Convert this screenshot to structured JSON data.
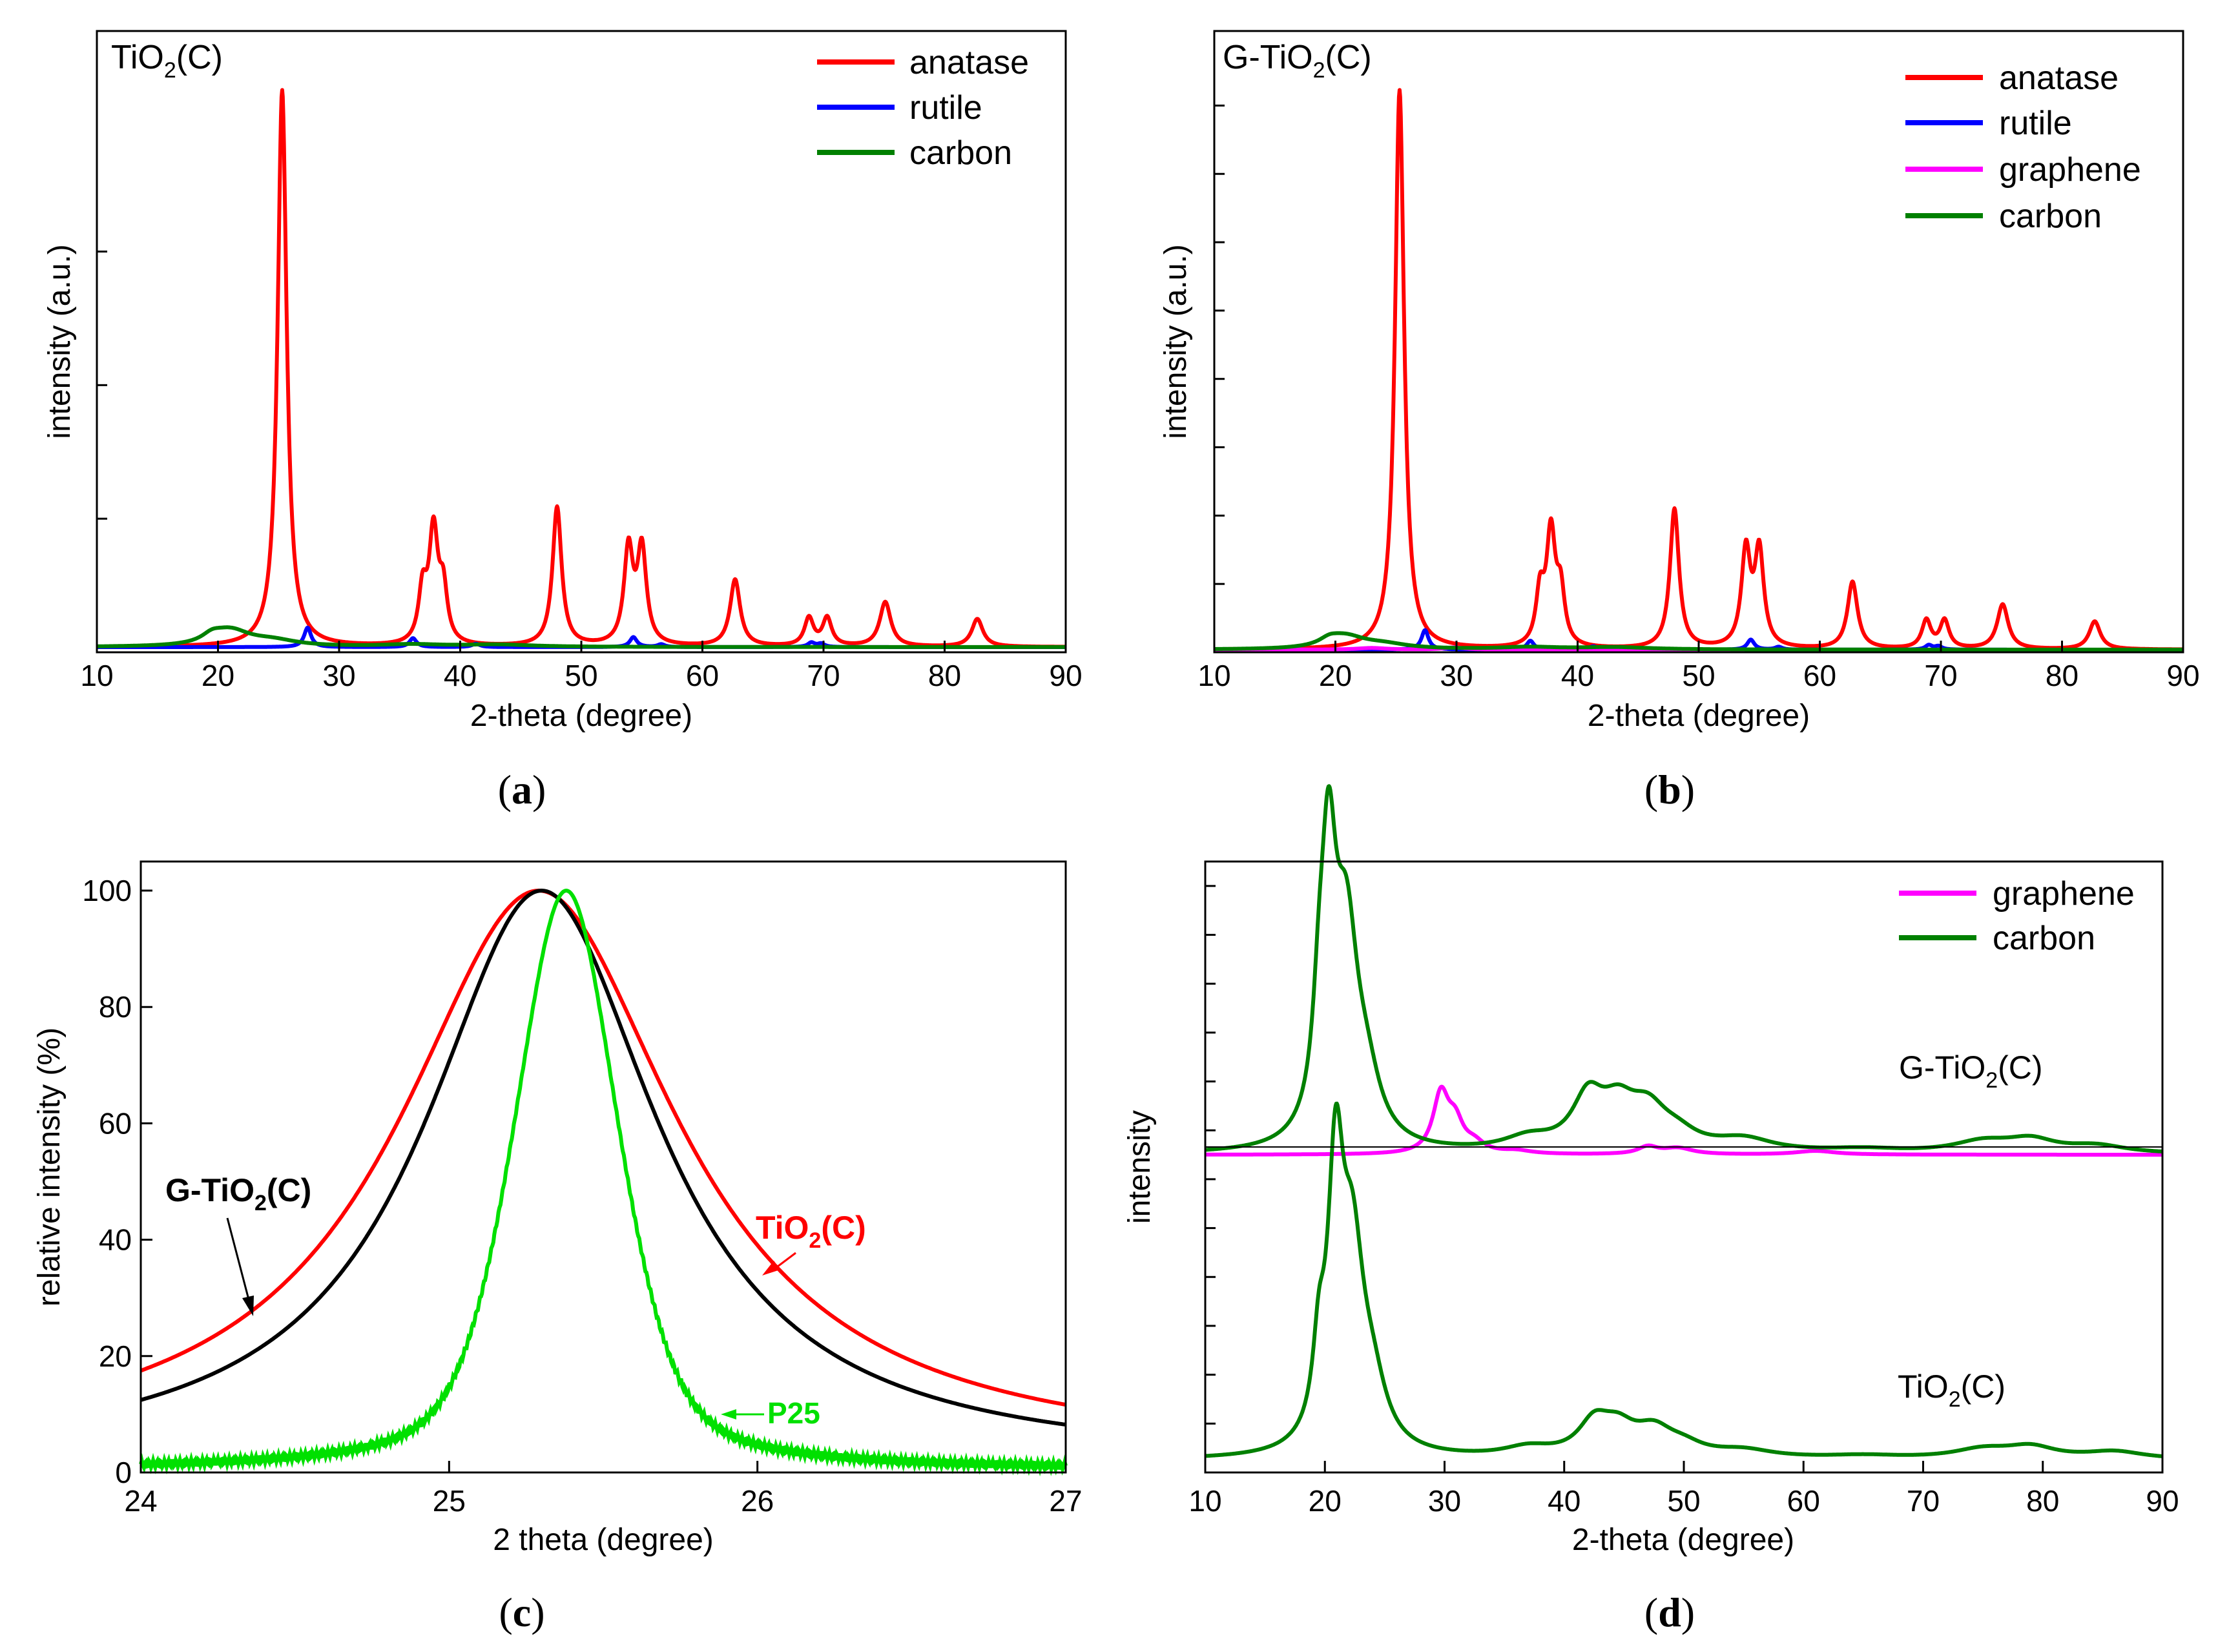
{
  "chart_data": [
    {
      "id": "a",
      "type": "line",
      "caption": "a",
      "sample_label": "TiO2(C)",
      "xlabel": "2-theta (degree)",
      "ylabel": "intensity (a.u.)",
      "xlim": [
        10,
        90
      ],
      "ylim": [
        0,
        1.0
      ],
      "x_ticks": [
        10,
        20,
        30,
        40,
        50,
        60,
        70,
        80,
        90
      ],
      "y_ticks": [
        0.25,
        0.5,
        0.75
      ],
      "series": [
        {
          "name": "anatase",
          "color": "#ff0000",
          "kind": "peaks",
          "peaks": [
            [
              25.3,
              1.0,
              0.45
            ],
            [
              36.9,
              0.09,
              0.4
            ],
            [
              37.8,
              0.2,
              0.45
            ],
            [
              38.6,
              0.09,
              0.4
            ],
            [
              48.0,
              0.25,
              0.45
            ],
            [
              53.9,
              0.17,
              0.45
            ],
            [
              55.0,
              0.17,
              0.45
            ],
            [
              62.7,
              0.12,
              0.5
            ],
            [
              68.8,
              0.05,
              0.45
            ],
            [
              70.3,
              0.05,
              0.45
            ],
            [
              75.1,
              0.08,
              0.55
            ],
            [
              82.7,
              0.05,
              0.55
            ]
          ]
        },
        {
          "name": "rutile",
          "color": "#0000ff",
          "kind": "peaks",
          "peaks": [
            [
              27.4,
              0.035,
              0.35
            ],
            [
              36.1,
              0.016,
              0.35
            ],
            [
              41.3,
              0.006,
              0.4
            ],
            [
              54.3,
              0.018,
              0.35
            ],
            [
              56.6,
              0.005,
              0.35
            ],
            [
              69.0,
              0.008,
              0.35
            ],
            [
              69.8,
              0.006,
              0.35
            ]
          ]
        },
        {
          "name": "carbon",
          "color": "#008000",
          "kind": "peaks",
          "peaks": [
            [
              19.5,
              0.012,
              1.0
            ],
            [
              21.0,
              0.028,
              2.0
            ],
            [
              24.5,
              0.01,
              2.5
            ],
            [
              36.0,
              0.004,
              3.0
            ],
            [
              43.0,
              0.004,
              3.5
            ]
          ]
        }
      ]
    },
    {
      "id": "b",
      "type": "line",
      "caption": "b",
      "sample_label": "G-TiO2(C)",
      "xlabel": "2-theta (degree)",
      "ylabel": "intensity (a.u.)",
      "xlim": [
        10,
        90
      ],
      "ylim": [
        0,
        1.0
      ],
      "x_ticks": [
        10,
        20,
        30,
        40,
        50,
        60,
        70,
        80,
        90
      ],
      "y_ticks": [
        0.11,
        0.22,
        0.33,
        0.44,
        0.55,
        0.66,
        0.77,
        0.88
      ],
      "series": [
        {
          "name": "anatase",
          "color": "#ff0000",
          "kind": "peaks",
          "peaks": [
            [
              25.3,
              1.0,
              0.45
            ],
            [
              36.9,
              0.09,
              0.4
            ],
            [
              37.8,
              0.2,
              0.45
            ],
            [
              38.6,
              0.09,
              0.4
            ],
            [
              48.0,
              0.25,
              0.45
            ],
            [
              53.9,
              0.17,
              0.45
            ],
            [
              55.0,
              0.17,
              0.45
            ],
            [
              62.7,
              0.12,
              0.5
            ],
            [
              68.8,
              0.05,
              0.45
            ],
            [
              70.3,
              0.05,
              0.45
            ],
            [
              75.1,
              0.08,
              0.55
            ],
            [
              82.7,
              0.05,
              0.55
            ]
          ]
        },
        {
          "name": "rutile",
          "color": "#0000ff",
          "kind": "peaks",
          "peaks": [
            [
              27.4,
              0.035,
              0.35
            ],
            [
              36.1,
              0.016,
              0.35
            ],
            [
              41.3,
              0.006,
              0.4
            ],
            [
              54.3,
              0.018,
              0.35
            ],
            [
              56.6,
              0.005,
              0.35
            ],
            [
              69.0,
              0.008,
              0.35
            ],
            [
              69.8,
              0.006,
              0.35
            ]
          ]
        },
        {
          "name": "graphene",
          "color": "#ff00ff",
          "kind": "peaks",
          "peaks": [
            [
              23.0,
              0.003,
              1.5
            ],
            [
              29.8,
              0.004,
              1.0
            ]
          ]
        },
        {
          "name": "carbon",
          "color": "#008000",
          "kind": "peaks",
          "peaks": [
            [
              19.5,
              0.01,
              1.0
            ],
            [
              20.8,
              0.022,
              2.0
            ],
            [
              24.0,
              0.008,
              2.5
            ],
            [
              36.0,
              0.004,
              3.0
            ],
            [
              43.0,
              0.004,
              3.5
            ]
          ]
        }
      ]
    },
    {
      "id": "c",
      "type": "line",
      "caption": "c",
      "xlabel": "2 theta (degree)",
      "ylabel": "relative intensity (%)",
      "xlim": [
        24,
        27
      ],
      "ylim": [
        0,
        105
      ],
      "x_ticks": [
        24,
        25,
        26,
        27
      ],
      "y_ticks": [
        0,
        20,
        40,
        60,
        80,
        100
      ],
      "series": [
        {
          "name": "TiO2(C)",
          "color": "#ff0000",
          "kind": "lorentz",
          "center": 25.29,
          "hwhm": 0.55,
          "baseline": 2.5
        },
        {
          "name": "G-TiO2(C)",
          "color": "#000000",
          "kind": "lorentz",
          "center": 25.3,
          "hwhm": 0.46,
          "baseline": 1.5
        },
        {
          "name": "P25",
          "color": "#00e000",
          "kind": "pseudo",
          "center": 25.38,
          "hwhm": 0.2,
          "baseline": 0.5
        }
      ],
      "annotations": [
        {
          "label": "G-TiO2(C)",
          "color": "#000000"
        },
        {
          "label": "TiO2(C)",
          "color": "#ff0000"
        },
        {
          "label": "P25",
          "color": "#00e000"
        }
      ]
    },
    {
      "id": "d",
      "type": "line",
      "caption": "d",
      "xlabel": "2-theta (degree)",
      "ylabel": "intensity",
      "xlim": [
        10,
        90
      ],
      "ylim": [
        0,
        1.0
      ],
      "x_ticks": [
        10,
        20,
        30,
        40,
        50,
        60,
        70,
        80,
        90
      ],
      "y_ticks": [
        0.08,
        0.16,
        0.24,
        0.32,
        0.4,
        0.48,
        0.56,
        0.64,
        0.72,
        0.8,
        0.88,
        0.96
      ],
      "sample_labels": [
        "G-TiO2(C)",
        "TiO2(C)"
      ],
      "series": [
        {
          "name": "graphene",
          "color": "#ff00ff",
          "offset": 0.52,
          "kind": "peaks",
          "peaks": [
            [
              29.7,
              0.095,
              0.8
            ],
            [
              30.9,
              0.045,
              0.8
            ],
            [
              32.5,
              0.015,
              1.0
            ],
            [
              36.0,
              0.005,
              1.5
            ],
            [
              47.0,
              0.012,
              1.0
            ],
            [
              49.5,
              0.01,
              1.5
            ],
            [
              61.0,
              0.006,
              2.0
            ]
          ]
        },
        {
          "name": "carbon",
          "color": "#008000",
          "offset": 0.52,
          "kind": "peaks",
          "peaks": [
            [
              19.5,
              0.12,
              0.6
            ],
            [
              20.3,
              0.42,
              0.8
            ],
            [
              21.8,
              0.32,
              1.2
            ],
            [
              23.5,
              0.08,
              1.4
            ],
            [
              37.0,
              0.02,
              2.5
            ],
            [
              42.0,
              0.08,
              1.6
            ],
            [
              44.5,
              0.06,
              1.8
            ],
            [
              47.0,
              0.06,
              2.0
            ],
            [
              49.5,
              0.02,
              2.0
            ],
            [
              55.0,
              0.02,
              3.0
            ],
            [
              65.0,
              0.006,
              4.0
            ],
            [
              75.0,
              0.018,
              3.0
            ],
            [
              79.0,
              0.02,
              2.5
            ],
            [
              84.5,
              0.012,
              3.0
            ]
          ]
        },
        {
          "name": "carbon",
          "color": "#008000",
          "offset": 0.02,
          "kind": "peaks",
          "peaks": [
            [
              19.5,
              0.12,
              0.6
            ],
            [
              20.9,
              0.42,
              0.8
            ],
            [
              22.3,
              0.3,
              1.2
            ],
            [
              24.0,
              0.08,
              1.4
            ],
            [
              37.0,
              0.015,
              2.5
            ],
            [
              42.5,
              0.05,
              1.6
            ],
            [
              44.5,
              0.04,
              1.8
            ],
            [
              47.5,
              0.04,
              2.0
            ],
            [
              50.0,
              0.015,
              2.0
            ],
            [
              55.0,
              0.012,
              3.0
            ],
            [
              65.0,
              0.005,
              4.0
            ],
            [
              75.0,
              0.015,
              3.0
            ],
            [
              79.0,
              0.018,
              2.5
            ],
            [
              86.0,
              0.012,
              3.0
            ]
          ]
        }
      ],
      "legend": [
        "graphene",
        "carbon"
      ]
    }
  ]
}
